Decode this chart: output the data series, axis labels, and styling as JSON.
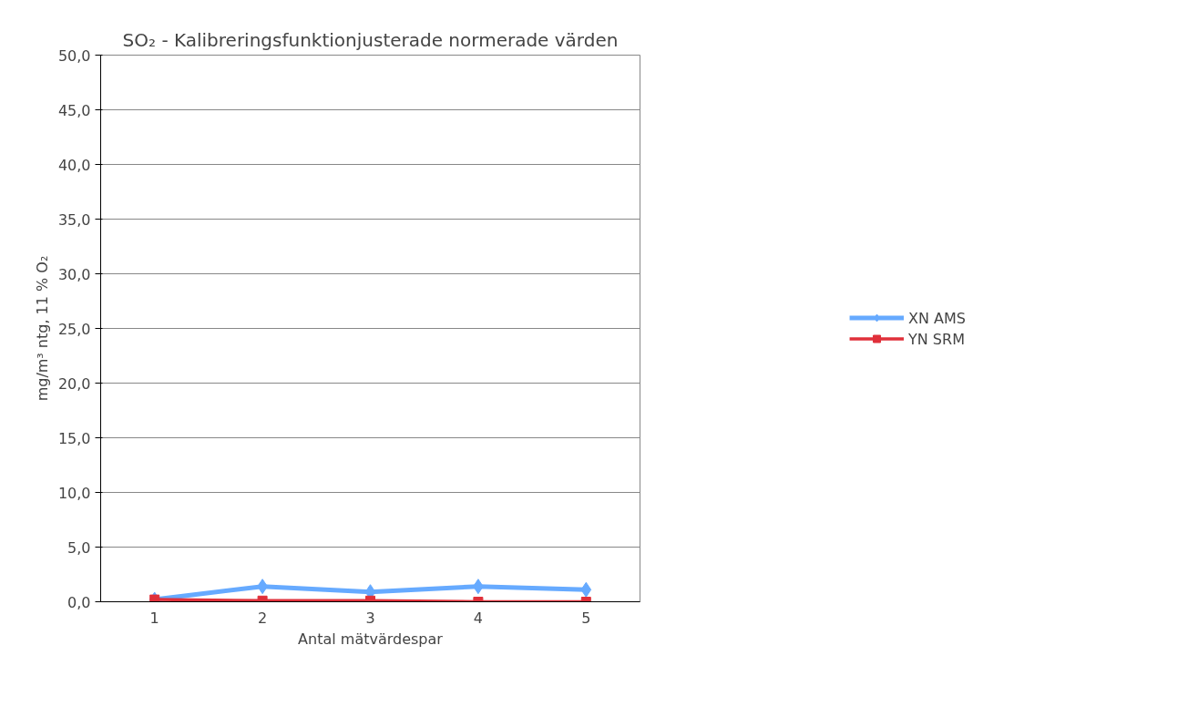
{
  "chart_data": {
    "type": "line",
    "title": "SO₂ - Kalibreringsfunktionjusterade normerade värden",
    "xlabel": "Antal mätvärdespar",
    "ylabel": "mg/m³ ntg, 11 % O₂",
    "categories": [
      "1",
      "2",
      "3",
      "4",
      "5"
    ],
    "series": [
      {
        "name": "XN AMS",
        "color": "#66aaff",
        "marker": "diamond",
        "values": [
          0.2,
          1.4,
          0.9,
          1.4,
          1.1
        ]
      },
      {
        "name": "YN SRM",
        "color": "#e0303a",
        "marker": "square",
        "values": [
          0.2,
          0.1,
          0.1,
          0.0,
          0.0
        ]
      }
    ],
    "ylim": [
      0,
      50
    ],
    "yticks": [
      {
        "value": 0,
        "label": "0,0"
      },
      {
        "value": 5,
        "label": "5,0"
      },
      {
        "value": 10,
        "label": "10,0"
      },
      {
        "value": 15,
        "label": "15,0"
      },
      {
        "value": 20,
        "label": "20,0"
      },
      {
        "value": 25,
        "label": "25,0"
      },
      {
        "value": 30,
        "label": "30,0"
      },
      {
        "value": 35,
        "label": "35,0"
      },
      {
        "value": 40,
        "label": "40,0"
      },
      {
        "value": 45,
        "label": "45,0"
      },
      {
        "value": 50,
        "label": "50,0"
      }
    ],
    "grid": "y",
    "legend": "right",
    "line_style": "solid"
  }
}
